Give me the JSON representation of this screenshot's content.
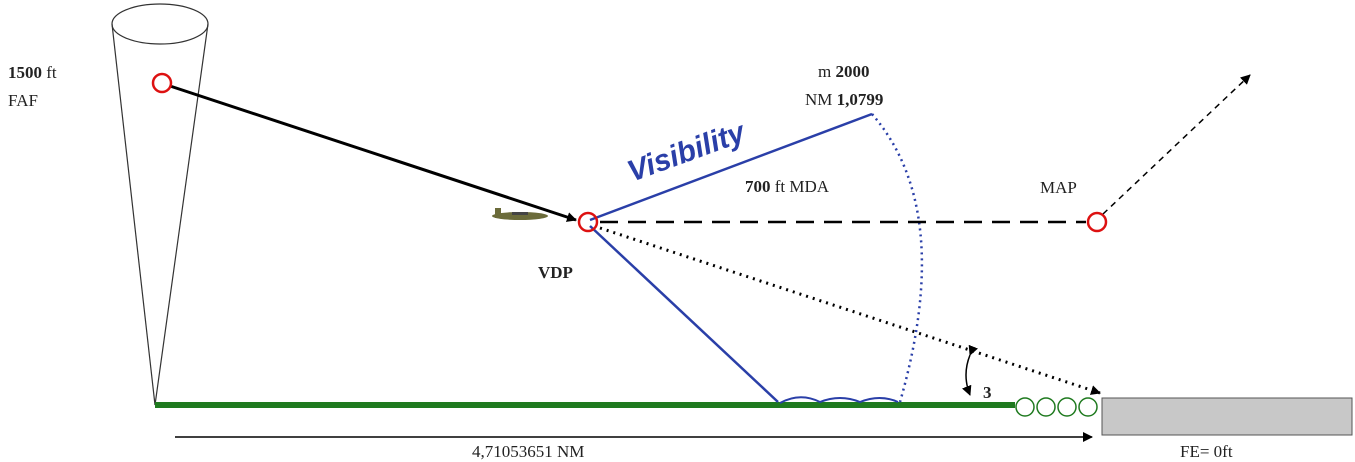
{
  "faf": {
    "altitude_value": "1500",
    "altitude_unit": "ft",
    "label": "FAF"
  },
  "visibility": {
    "label": "Visibility",
    "meters_unit": "m",
    "meters_value": "2000",
    "nm_unit": "NM",
    "nm_value": "1,0799"
  },
  "mda": {
    "altitude_value": "700",
    "label": "ft MDA"
  },
  "map": {
    "label": "MAP"
  },
  "vdp": {
    "label": "VDP"
  },
  "glide_angle": {
    "label": "3"
  },
  "distance": {
    "label": "4,71053651 NM"
  },
  "field_elevation": {
    "label": "FE= 0ft"
  }
}
